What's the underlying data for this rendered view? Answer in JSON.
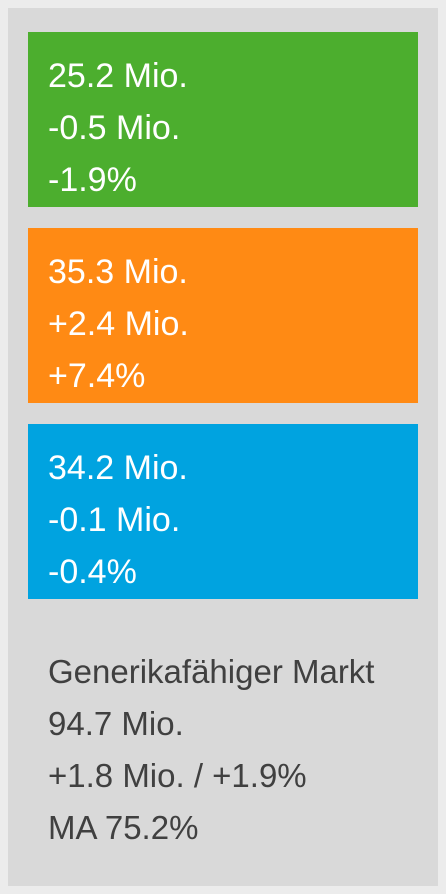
{
  "tiles": [
    {
      "color": "#4cae2e",
      "lines": [
        "25.2 Mio.",
        "-0.5 Mio.",
        "-1.9%"
      ]
    },
    {
      "color": "#ff8a14",
      "lines": [
        "35.3 Mio.",
        "+2.4 Mio.",
        "+7.4%"
      ]
    },
    {
      "color": "#00a3e0",
      "lines": [
        "34.2 Mio.",
        "-0.1 Mio.",
        "-0.4%"
      ]
    }
  ],
  "summary": {
    "lines": [
      "Generikafähiger Markt",
      "94.7 Mio.",
      "+1.8 Mio. / +1.9%",
      "MA 75.2%"
    ]
  }
}
